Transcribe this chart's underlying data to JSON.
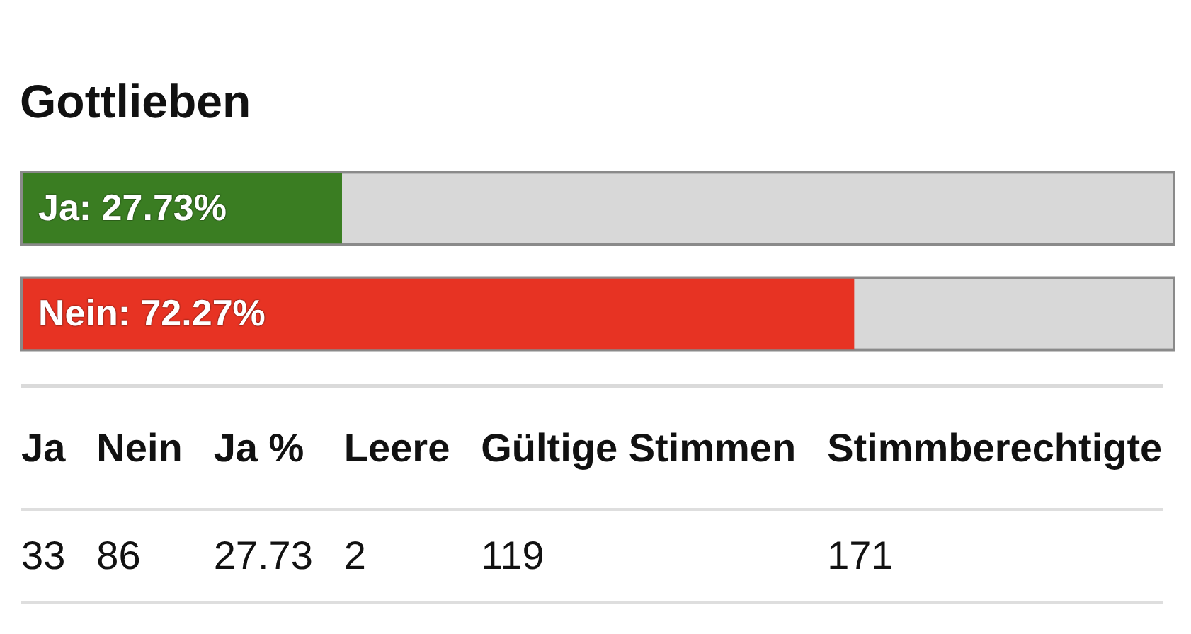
{
  "chart_data": [
    {
      "type": "bar",
      "title": "Gottlieben",
      "orientation": "horizontal",
      "categories": [
        null,
        null
      ],
      "values": [
        27.73,
        72.27
      ],
      "colors": [
        "#3a7d22",
        "#e73323"
      ],
      "value_labels": [
        "Ja: 27.73%",
        "Nein: 72.27%"
      ],
      "xlim": [
        0,
        100
      ],
      "tick_labels": false,
      "grid": false,
      "legend": false
    },
    {
      "type": "other",
      "categories": [
        "Ja",
        "Nein",
        "Ja %",
        "Leere",
        "Gültige Stimmen",
        "Stimmberechtigte"
      ],
      "values": [
        33,
        86,
        27.73,
        2,
        119,
        171
      ],
      "data_labels": true
    }
  ]
}
